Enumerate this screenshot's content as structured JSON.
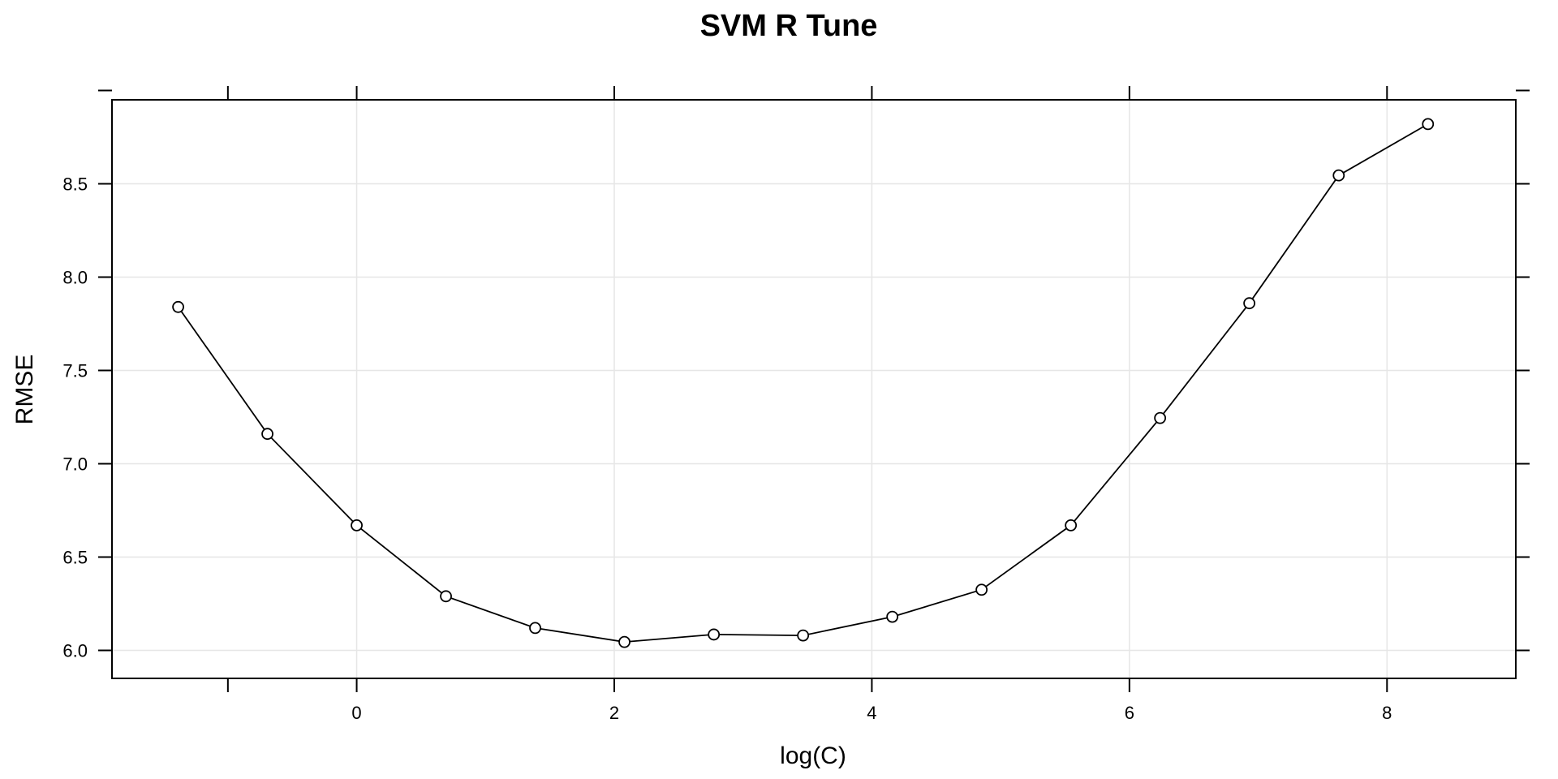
{
  "chart_data": {
    "type": "line",
    "title": "SVM R Tune",
    "xlabel": "log(C)",
    "ylabel": "RMSE",
    "xlim": [
      -1.9,
      9.0
    ],
    "ylim": [
      5.85,
      8.95
    ],
    "xticks": [
      0,
      2,
      4,
      6,
      8
    ],
    "xtick_labels": [
      "0",
      "2",
      "4",
      "6",
      "8"
    ],
    "yticks": [
      6.0,
      6.5,
      7.0,
      7.5,
      8.0,
      8.5
    ],
    "ytick_labels": [
      "6.0",
      "6.5",
      "7.0",
      "7.5",
      "8.0",
      "8.5"
    ],
    "grid": true,
    "marker": "open-circle",
    "line_color": "#000000",
    "grid_color": "#e6e6e6",
    "series": [
      {
        "x": [
          -1.386,
          -0.693,
          0.0,
          0.693,
          1.386,
          2.079,
          2.773,
          3.466,
          4.159,
          4.852,
          5.545,
          6.238,
          6.931,
          7.625,
          8.318
        ],
        "y": [
          7.84,
          7.16,
          6.67,
          6.29,
          6.12,
          6.045,
          6.085,
          6.08,
          6.18,
          6.325,
          6.67,
          7.245,
          7.86,
          8.545,
          8.82
        ]
      }
    ]
  }
}
